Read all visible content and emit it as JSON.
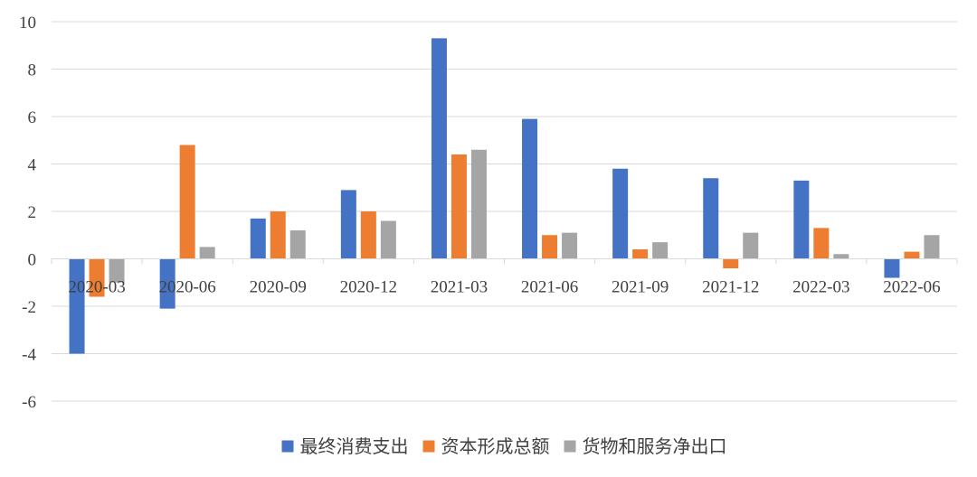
{
  "chart_data": {
    "type": "bar",
    "title": "",
    "xlabel": "",
    "ylabel": "",
    "ylim": [
      -6,
      10
    ],
    "yticks": [
      -6,
      -4,
      -2,
      0,
      2,
      4,
      6,
      8,
      10
    ],
    "grid": true,
    "legend_position": "bottom",
    "categories": [
      "2020-03",
      "2020-06",
      "2020-09",
      "2020-12",
      "2021-03",
      "2021-06",
      "2021-09",
      "2021-12",
      "2022-03",
      "2022-06"
    ],
    "series": [
      {
        "name": "最终消费支出",
        "color": "#4472C4",
        "values": [
          -4.0,
          -2.1,
          1.7,
          2.9,
          9.3,
          5.9,
          3.8,
          3.4,
          3.3,
          -0.8
        ]
      },
      {
        "name": "资本形成总额",
        "color": "#ED7D31",
        "values": [
          -1.6,
          4.8,
          2.0,
          2.0,
          4.4,
          1.0,
          0.4,
          -0.4,
          1.3,
          0.3
        ]
      },
      {
        "name": "货物和服务净出口",
        "color": "#A5A5A5",
        "values": [
          -1.0,
          0.5,
          1.2,
          1.6,
          4.6,
          1.1,
          0.7,
          1.1,
          0.2,
          1.0
        ]
      }
    ]
  }
}
